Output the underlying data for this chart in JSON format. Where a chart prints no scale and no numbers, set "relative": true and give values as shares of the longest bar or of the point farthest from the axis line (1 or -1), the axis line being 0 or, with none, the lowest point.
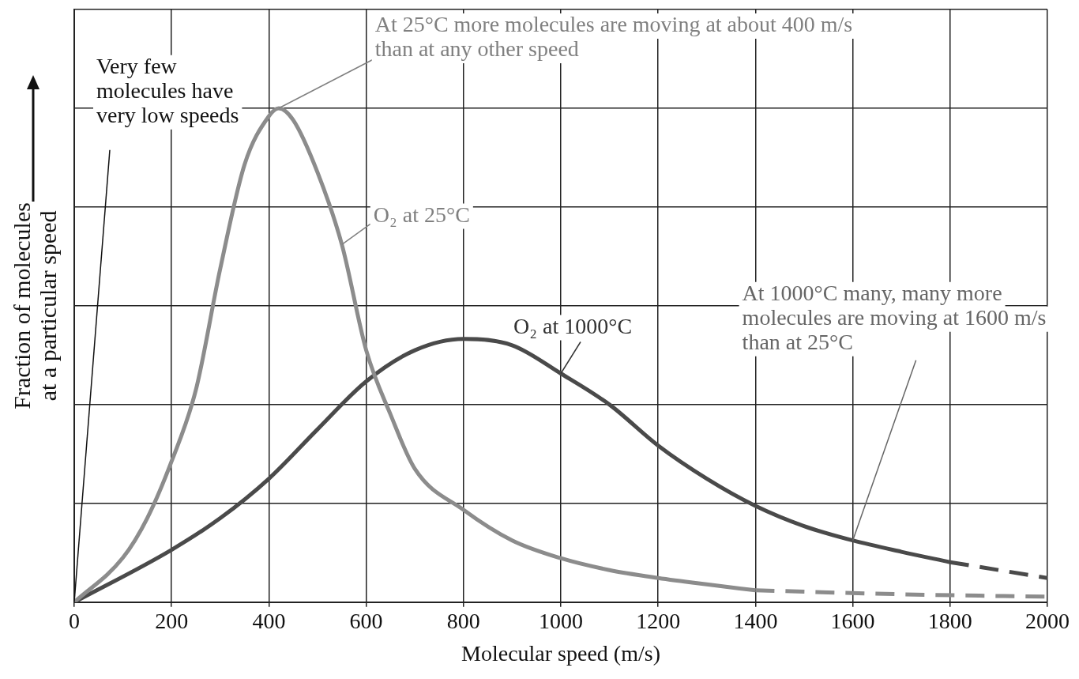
{
  "chart_data": {
    "type": "line",
    "xlabel": "Molecular speed (m/s)",
    "ylabel": "Fraction of molecules at a particular speed",
    "relative": true,
    "xlim": [
      0,
      2000
    ],
    "xticks": [
      0,
      200,
      400,
      600,
      800,
      1000,
      1200,
      1400,
      1600,
      1800,
      2000
    ],
    "grid": true,
    "legend": false,
    "marker": "none",
    "line_style": "solid",
    "series": [
      {
        "color": "#8c8c8c",
        "x": [
          0,
          100,
          150,
          200,
          250,
          300,
          350,
          400,
          420,
          450,
          500,
          550,
          600,
          650,
          700,
          800,
          900,
          1000,
          1100,
          1200,
          1300,
          1400
        ],
        "values": [
          0,
          0.09,
          0.17,
          0.285,
          0.43,
          0.675,
          0.886,
          0.984,
          1,
          0.976,
          0.87,
          0.724,
          0.51,
          0.38,
          0.27,
          0.187,
          0.125,
          0.089,
          0.065,
          0.049,
          0.036,
          0.024
        ]
      },
      {
        "color": "#4a4a4a",
        "x": [
          0,
          200,
          300,
          400,
          500,
          600,
          700,
          800,
          900,
          1000,
          1100,
          1200,
          1300,
          1400,
          1500,
          1600,
          1700,
          1800
        ],
        "values": [
          0,
          0.106,
          0.17,
          0.25,
          0.35,
          0.447,
          0.51,
          0.533,
          0.52,
          0.463,
          0.4,
          0.317,
          0.25,
          0.195,
          0.154,
          0.125,
          0.102,
          0.081
        ]
      },
      {
        "color": "#8c8c8c",
        "line_style": "dashed",
        "x": [
          1400,
          1700,
          2000
        ],
        "values": [
          0.024,
          0.016,
          0.011
        ]
      },
      {
        "color": "#4a4a4a",
        "line_style": "dashed",
        "x": [
          1800,
          2000
        ],
        "values": [
          0.081,
          0.049
        ]
      }
    ],
    "annotations": [
      {
        "text": "Very few molecules have very low speeds",
        "x": 0,
        "y": 0
      },
      {
        "text": "At 25°C more molecules are moving at about 400 m/s than at any other speed",
        "x": 420,
        "y": 1
      },
      {
        "text": "O₂ at 25°C",
        "x": 550,
        "y": 0.724
      },
      {
        "text": "O₂ at 1000°C",
        "x": 1000,
        "y": 0.463
      },
      {
        "text": "At 1000°C many, many more molecules are moving at 1600 m/s than at 25°C",
        "x": 1600,
        "y": 0.125
      }
    ]
  }
}
